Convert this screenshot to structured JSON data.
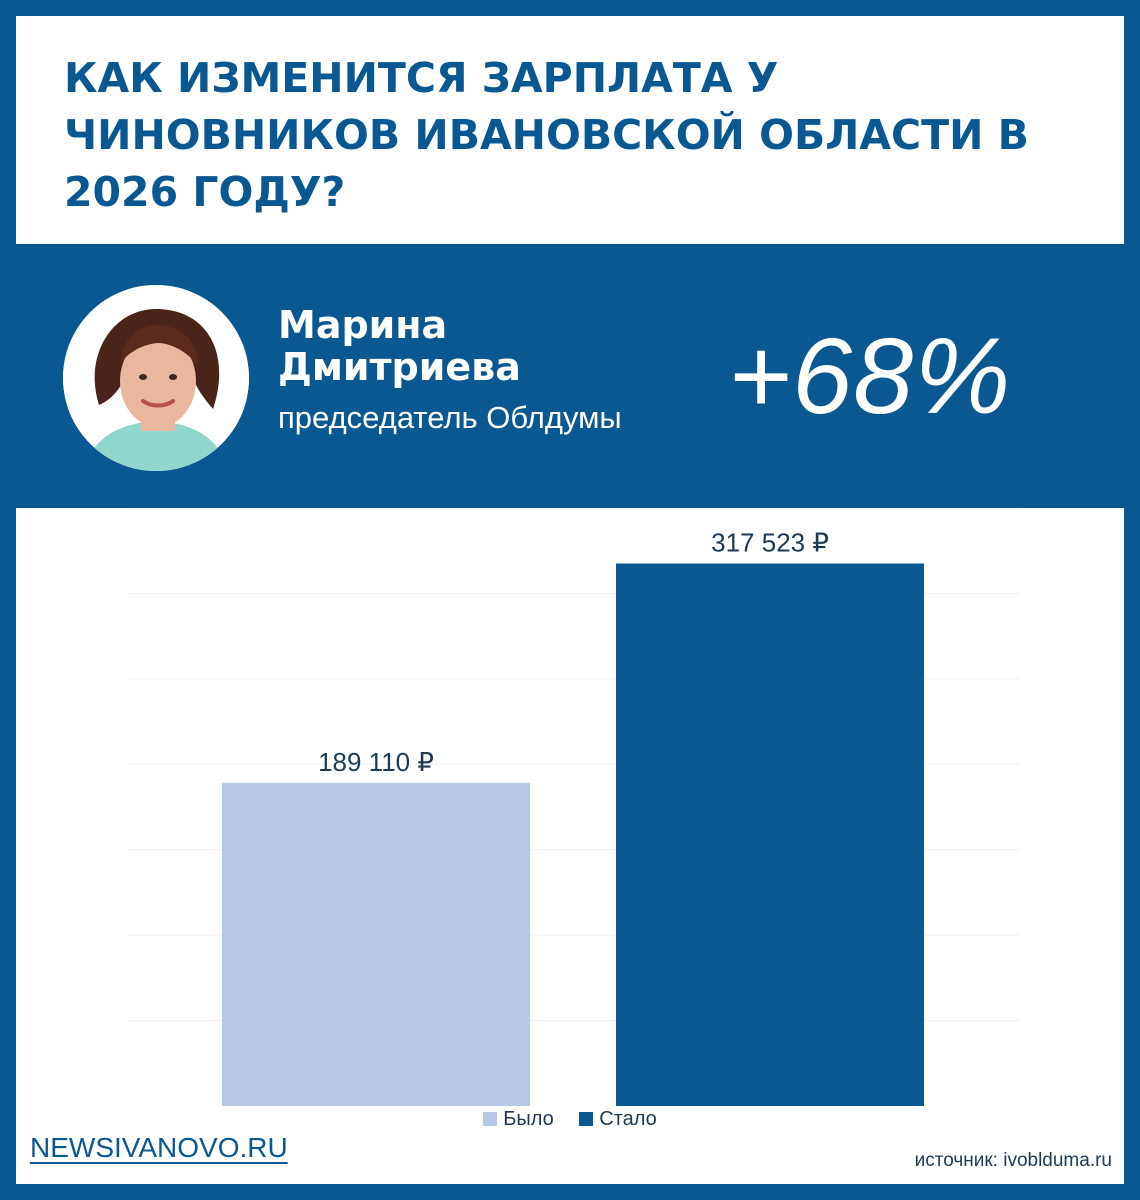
{
  "header": {
    "title": "КАК ИЗМЕНИТСЯ ЗАРПЛАТА У ЧИНОВНИКОВ ИВАНОВСКОЙ ОБЛАСТИ В 2026 ГОДУ?"
  },
  "person": {
    "first_name": "Марина",
    "last_name": "Дмитриева",
    "role": "председатель Облдумы",
    "change": "+68%"
  },
  "colors": {
    "brand": "#0a5891",
    "bar_before": "#b5c8e6",
    "bar_after": "#0a5891",
    "grid": "#eef1f5"
  },
  "chart_data": {
    "type": "bar",
    "categories": [
      "Было",
      "Стало"
    ],
    "values": [
      189110,
      317523
    ],
    "data_labels": [
      "189 110 ₽",
      "317 523 ₽"
    ],
    "ylim": [
      0,
      350000
    ],
    "grid": true,
    "legend": "bottom-center",
    "xlabel": "",
    "ylabel": ""
  },
  "legend": {
    "items": [
      {
        "label": "Было",
        "color": "#b5c8e6"
      },
      {
        "label": "Стало",
        "color": "#0a5891"
      }
    ]
  },
  "footer": {
    "site": "NEWSIVANOVO.RU",
    "source": "источник: ivoblduma.ru"
  }
}
